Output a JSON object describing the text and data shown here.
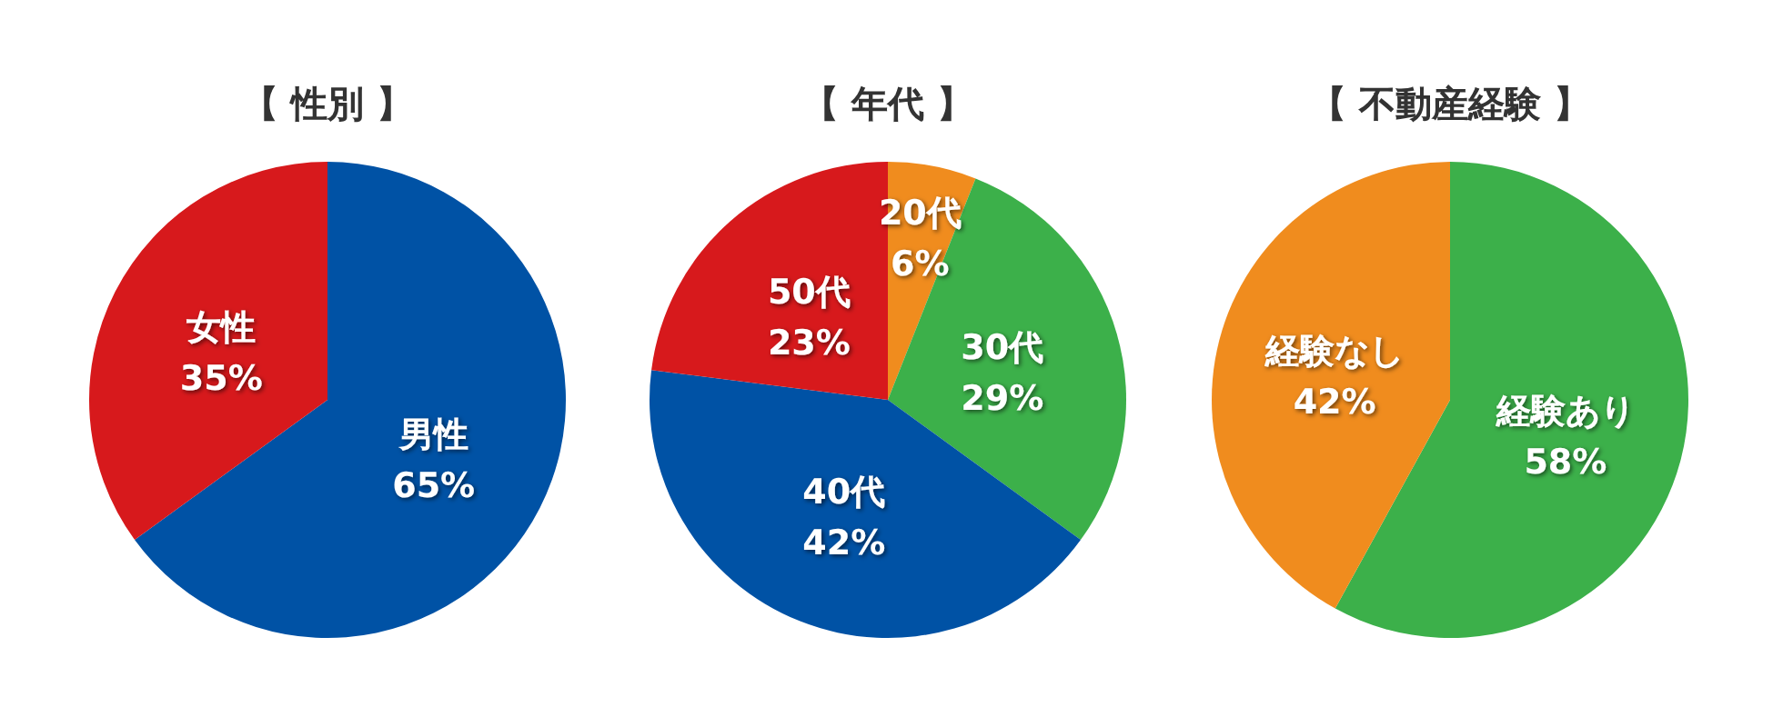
{
  "chart_data": [
    {
      "type": "pie",
      "title": "【 性別 】",
      "categories": [
        "男性",
        "女性"
      ],
      "values": [
        65,
        35
      ],
      "colors": [
        "#0052a5",
        "#d7191c"
      ],
      "value_labels": [
        "65%",
        "35%"
      ]
    },
    {
      "type": "pie",
      "title": "【 年代 】",
      "categories": [
        "20代",
        "30代",
        "40代",
        "50代"
      ],
      "values": [
        6,
        29,
        42,
        23
      ],
      "colors": [
        "#f08c1e",
        "#3cb04a",
        "#0052a5",
        "#d7191c"
      ],
      "value_labels": [
        "6%",
        "29%",
        "42%",
        "23%"
      ]
    },
    {
      "type": "pie",
      "title": "【 不動産経験 】",
      "categories": [
        "経験あり",
        "経験なし"
      ],
      "values": [
        58,
        42
      ],
      "colors": [
        "#3cb04a",
        "#f08c1e"
      ],
      "value_labels": [
        "58%",
        "42%"
      ]
    }
  ]
}
